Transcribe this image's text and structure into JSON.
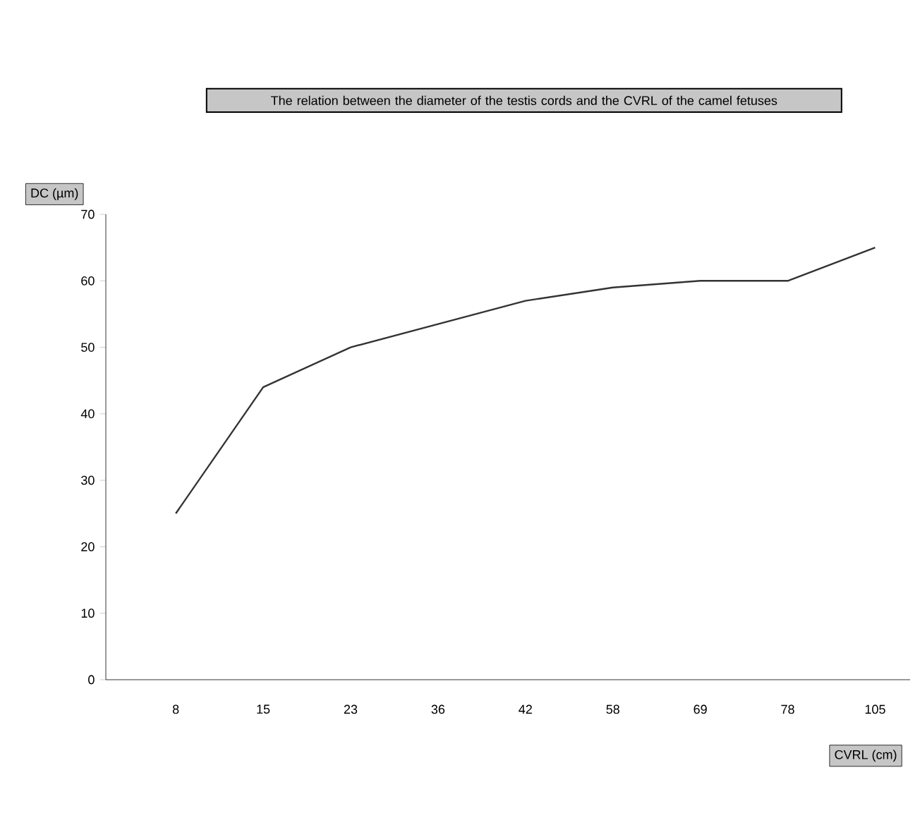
{
  "chart_data": {
    "type": "line",
    "title": "The relation between the diameter of the testis cords and the CVRL of the camel fetuses",
    "xlabel": "CVRL (cm)",
    "ylabel": "DC (µm)",
    "categories": [
      "8",
      "15",
      "23",
      "36",
      "42",
      "58",
      "69",
      "78",
      "105"
    ],
    "series": [
      {
        "color": "#333333",
        "values": [
          25,
          44,
          50,
          53.5,
          57,
          59,
          60,
          60,
          65
        ]
      }
    ],
    "ylim": [
      0,
      70
    ],
    "yticks": [
      0,
      10,
      20,
      30,
      40,
      50,
      60,
      70
    ],
    "grid": false,
    "legend": false,
    "marker": "none",
    "line_style": "solid"
  }
}
